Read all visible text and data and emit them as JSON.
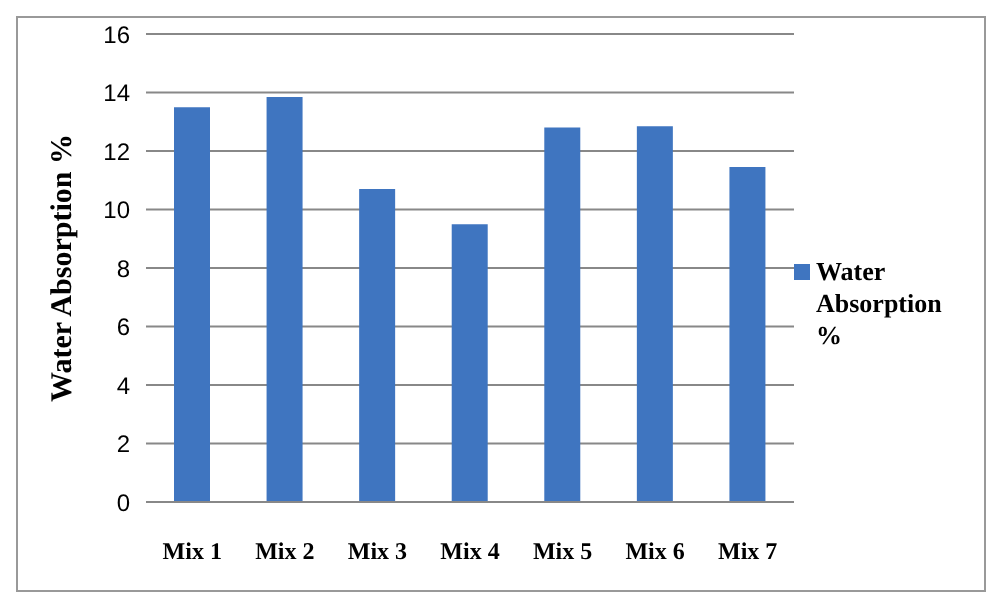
{
  "chart_data": {
    "type": "bar",
    "ylabel": "Water Absorption %",
    "categories": [
      "Mix 1",
      "Mix 2",
      "Mix 3",
      "Mix 4",
      "Mix 5",
      "Mix 6",
      "Mix 7"
    ],
    "series": [
      {
        "name": "Water Absorption %",
        "color": "#3f75c0",
        "values": [
          13.5,
          13.85,
          10.7,
          9.5,
          12.8,
          12.85,
          11.45
        ]
      }
    ],
    "ylim": [
      0,
      16
    ],
    "yticks": [
      0,
      2,
      4,
      6,
      8,
      10,
      12,
      14,
      16
    ],
    "grid": "y",
    "legend": "right"
  }
}
